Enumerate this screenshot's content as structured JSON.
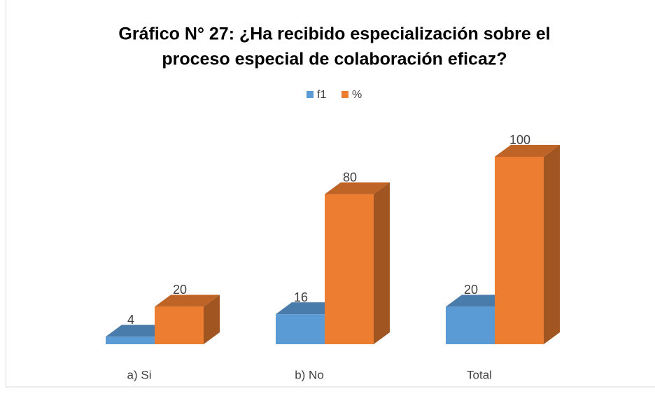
{
  "chart_data": {
    "type": "bar3d",
    "title": [
      "Gráfico N° 27: ¿Ha recibido especialización sobre el",
      "proceso especial de colaboración eficaz?"
    ],
    "categories": [
      "a) Si",
      "b) No",
      "Total"
    ],
    "series": [
      {
        "name": "f1",
        "color": "#5b9bd5",
        "values": [
          4,
          16,
          20
        ]
      },
      {
        "name": "%",
        "color": "#ed7d31",
        "values": [
          20,
          80,
          100
        ]
      }
    ],
    "legend": "top"
  }
}
